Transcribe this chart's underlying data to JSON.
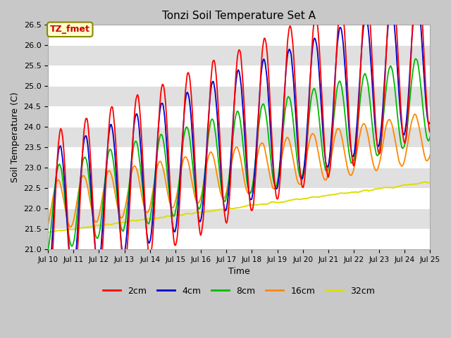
{
  "title": "Tonzi Soil Temperature Set A",
  "xlabel": "Time",
  "ylabel": "Soil Temperature (C)",
  "annotation": "TZ_fmet",
  "ylim": [
    21.0,
    26.5
  ],
  "colors": {
    "2cm": "#ff0000",
    "4cm": "#0000cc",
    "8cm": "#00bb00",
    "16cm": "#ff8800",
    "32cm": "#dddd00"
  },
  "num_days": 15,
  "x_tick_labels": [
    "Jul 10",
    "Jul 11",
    "Jul 12",
    "Jul 13",
    "Jul 14",
    "Jul 15",
    "Jul 16",
    "Jul 17",
    "Jul 18",
    "Jul 19",
    "Jul 20",
    "Jul 21",
    "Jul 22",
    "Jul 23",
    "Jul 24",
    "Jul 25"
  ],
  "yticks": [
    21.0,
    21.5,
    22.0,
    22.5,
    23.0,
    23.5,
    24.0,
    24.5,
    25.0,
    25.5,
    26.0,
    26.5
  ],
  "fig_bg": "#c8c8c8",
  "plot_bg": "#f0f0f0",
  "band_color": "#e0e0e0"
}
